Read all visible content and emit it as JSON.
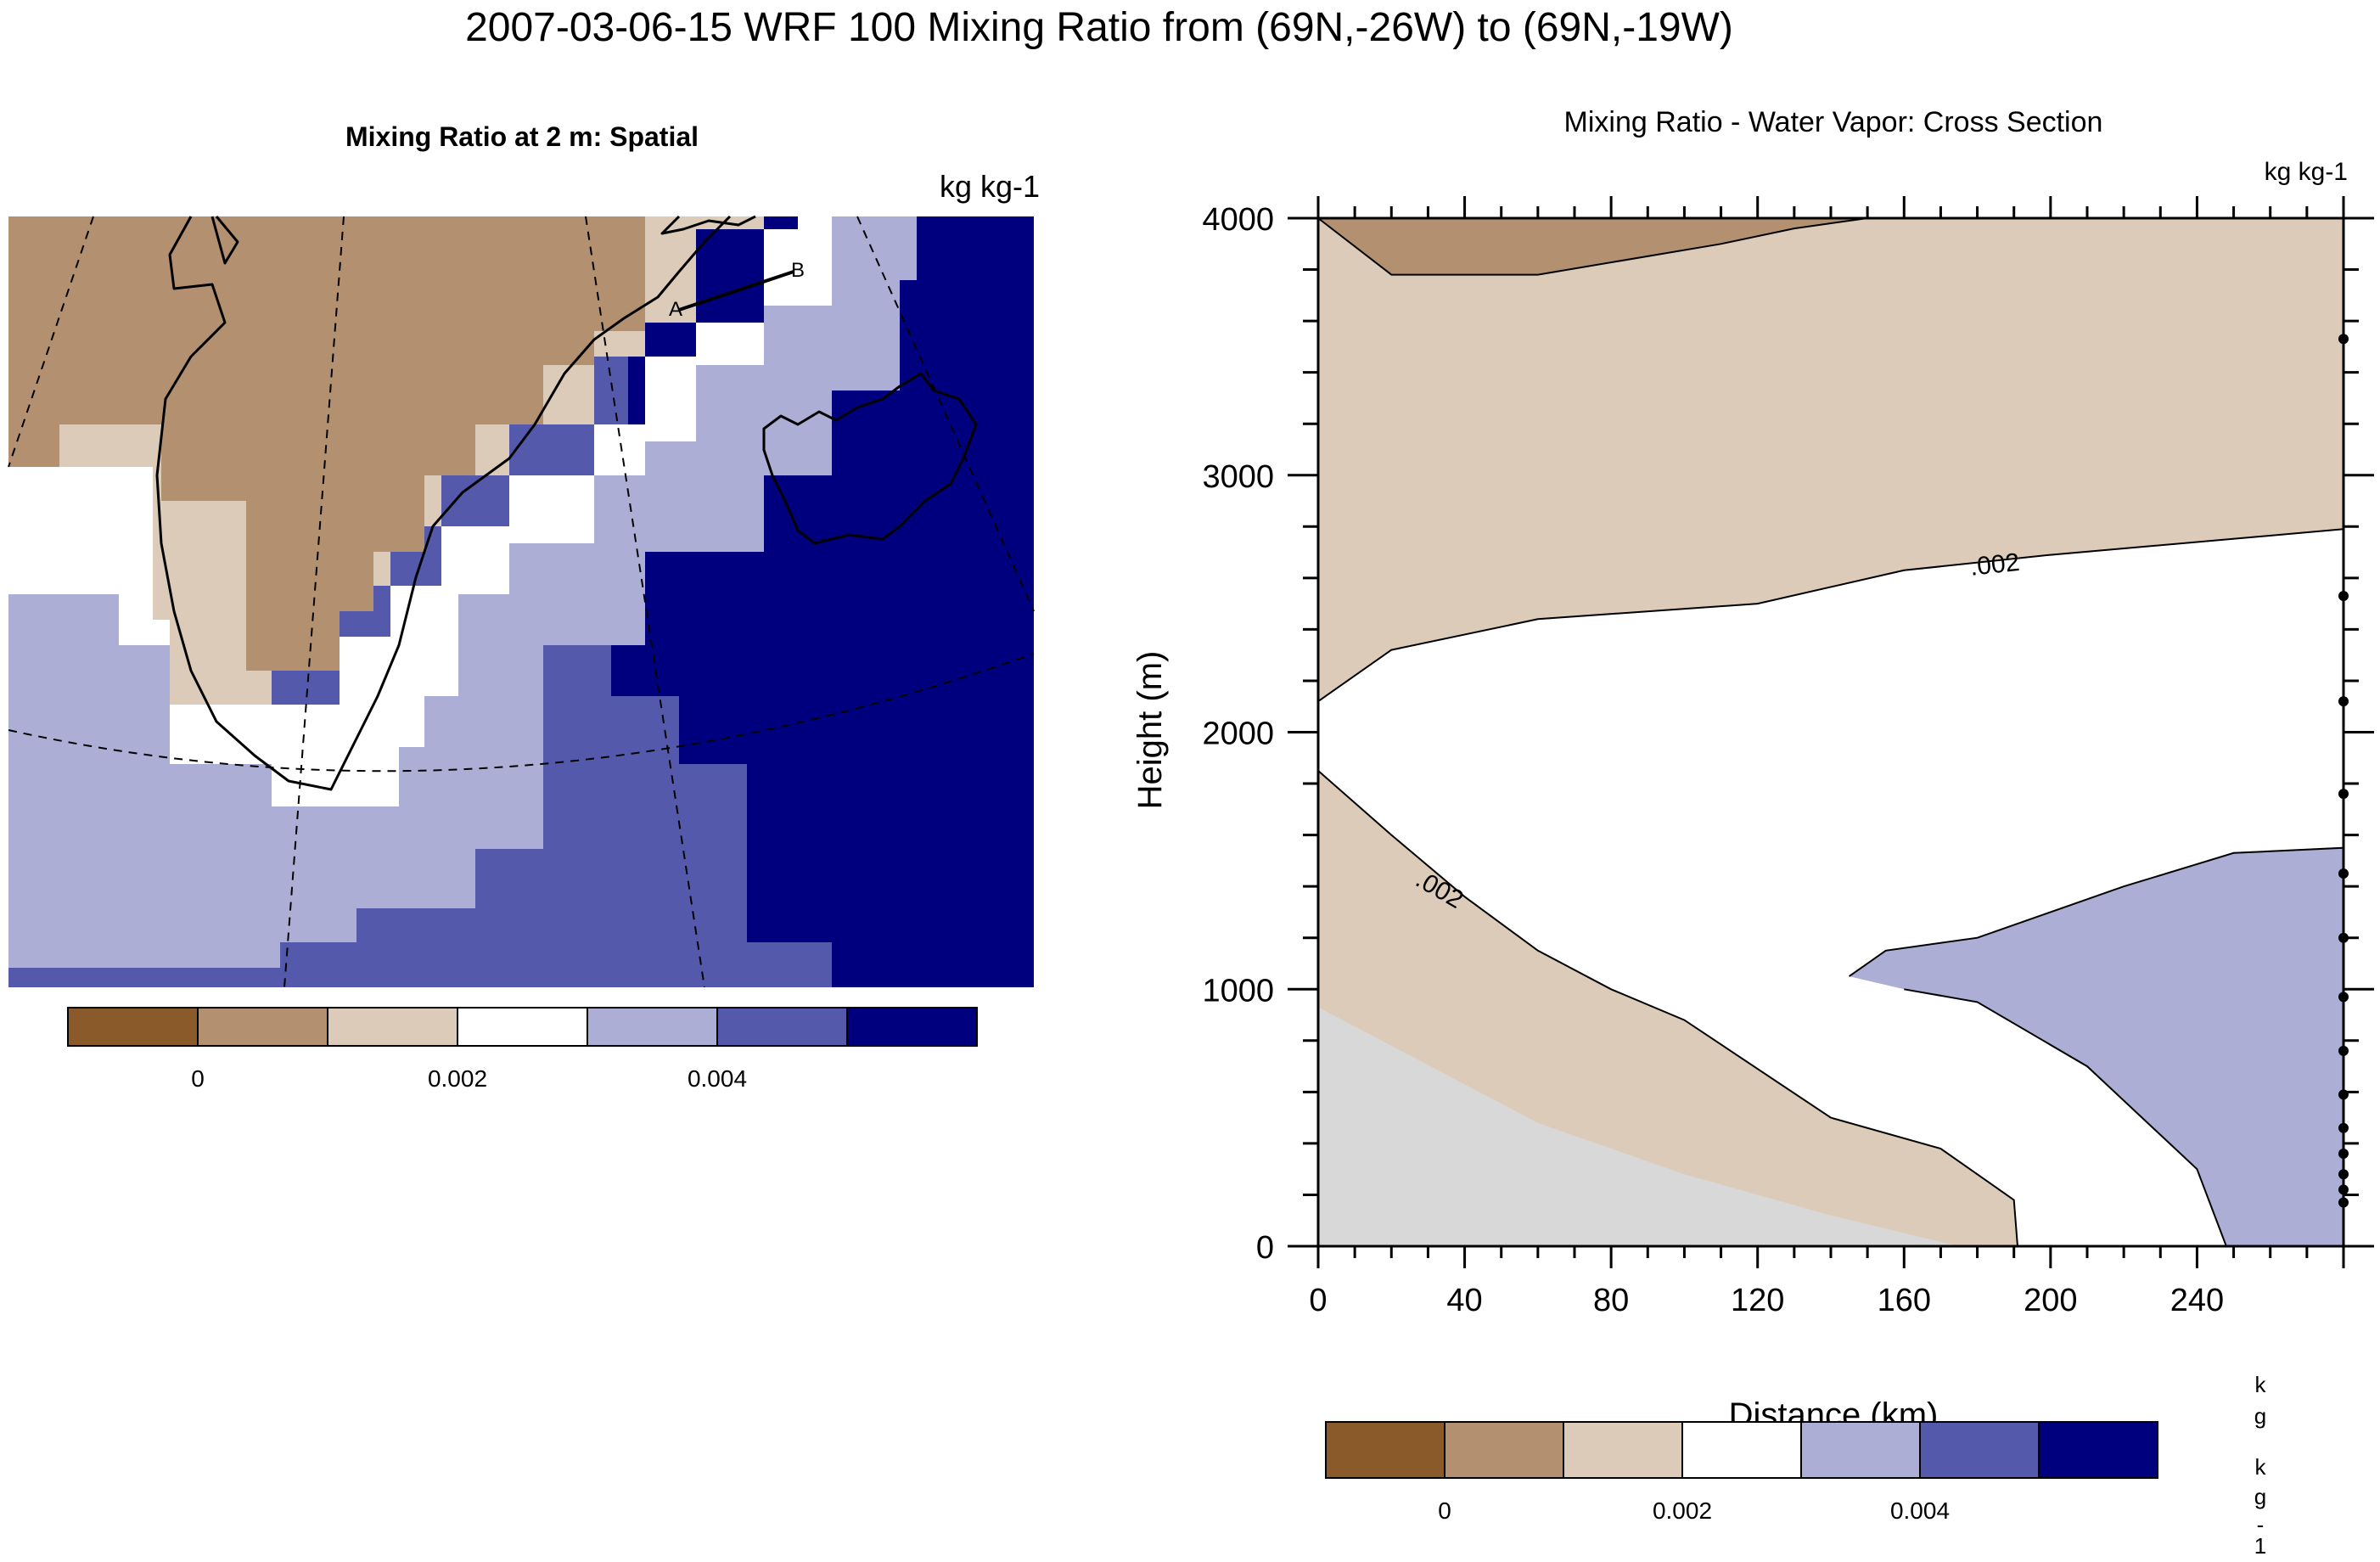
{
  "figure": {
    "title": "2007-03-06-15 WRF 100 Mixing Ratio from (69N,-26W) to (69N,-19W)"
  },
  "colors": {
    "brown_dark": "#8b5a2b",
    "brown_mid": "#b39170",
    "tan": "#dccbb8",
    "white": "#ffffff",
    "lavender": "#acaed6",
    "blue_mid": "#5559ab",
    "navy": "#00007f",
    "ground": "#d8d8d8"
  },
  "chart_data": [
    {
      "type": "heatmap",
      "title": "Mixing Ratio at 2 m: Spatial",
      "units": "kg kg-1",
      "transect_labels": [
        "A",
        "B"
      ],
      "colorbar": {
        "labels": [
          "0",
          "0.002",
          "0.004"
        ],
        "colors": [
          "#8b5a2b",
          "#b39170",
          "#dccbb8",
          "#ffffff",
          "#acaed6",
          "#5559ab",
          "#00007f"
        ]
      }
    },
    {
      "type": "area",
      "title": "Mixing Ratio - Water Vapor: Cross Section",
      "units": "kg kg-1",
      "xlabel": "Distance (km)",
      "ylabel": "Height (m)",
      "xlim": [
        0,
        280
      ],
      "ylim": [
        0,
        4000
      ],
      "x_ticks": [
        "0",
        "40",
        "80",
        "120",
        "160",
        "200",
        "240"
      ],
      "y_ticks": [
        "0",
        "1000",
        "2000",
        "3000",
        "4000"
      ],
      "contour_labels": [
        ".002",
        ".002"
      ],
      "colorbar": {
        "labels": [
          "0",
          "0.002",
          "0.004"
        ],
        "colors": [
          "#8b5a2b",
          "#b39170",
          "#dccbb8",
          "#ffffff",
          "#acaed6",
          "#5559ab",
          "#00007f"
        ]
      },
      "colorbar_units_stacked": [
        "k",
        "g",
        "k",
        "g",
        "-",
        "1"
      ],
      "regions": [
        {
          "name": "brown_top",
          "x": [
            0,
            20,
            60,
            110,
            130,
            150,
            170
          ],
          "y": [
            4000,
            3780,
            3780,
            3900,
            3960,
            4000,
            4000
          ]
        },
        {
          "name": "tan_upper_lower_edge",
          "x": [
            0,
            20,
            60,
            120,
            160,
            200,
            240,
            280
          ],
          "y": [
            2120,
            2320,
            2440,
            2500,
            2630,
            2690,
            2740,
            2790
          ]
        },
        {
          "name": "tan_lower_upper_edge",
          "x": [
            0,
            20,
            40,
            60,
            80,
            100,
            140,
            170,
            190
          ],
          "y": [
            1850,
            1600,
            1360,
            1150,
            1000,
            880,
            500,
            380,
            180
          ]
        },
        {
          "name": "lavender_outline",
          "x": [
            145,
            155,
            180,
            220,
            250,
            280,
            280,
            248,
            240,
            210,
            180,
            160
          ],
          "y": [
            1050,
            1150,
            1200,
            1400,
            1530,
            1550,
            0,
            0,
            300,
            700,
            950,
            1000
          ]
        }
      ]
    }
  ]
}
